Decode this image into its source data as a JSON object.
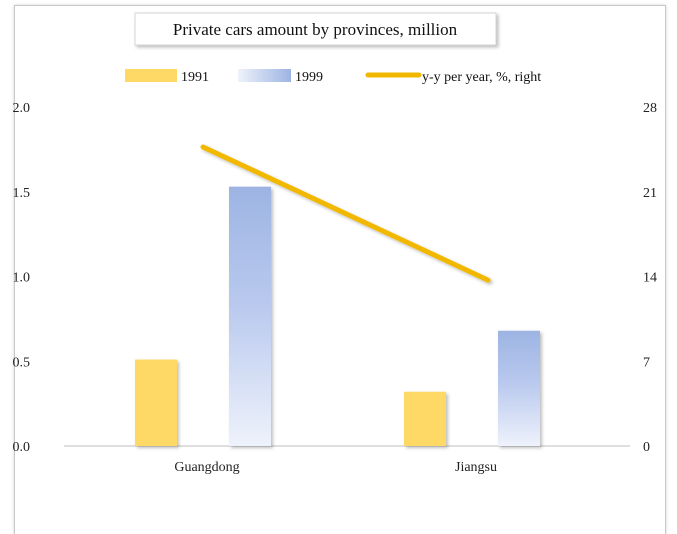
{
  "chart_data": {
    "type": "bar",
    "title": "Private cars amount by provinces, million",
    "categories": [
      "Guangdong",
      "Jiangsu"
    ],
    "series": [
      {
        "name": "1991",
        "type": "bar",
        "axis": "left",
        "values": [
          0.51,
          0.32
        ],
        "color": "#ffd966"
      },
      {
        "name": "1999",
        "type": "bar",
        "axis": "left",
        "values": [
          1.53,
          0.68
        ],
        "color": "#8eaadb"
      },
      {
        "name": "y-y per year, %, right",
        "type": "line",
        "axis": "right",
        "values": [
          24.7,
          13.7
        ],
        "color": "#f2b800"
      }
    ],
    "y_left": {
      "ylim": [
        0,
        2.0
      ],
      "ticks": [
        "0.0",
        "0.5",
        "1.0",
        "1.5",
        "2.0"
      ]
    },
    "y_right": {
      "ylim": [
        0,
        28
      ],
      "ticks": [
        "0",
        "7",
        "14",
        "21",
        "28"
      ]
    },
    "legend_placement": "top",
    "grid": false
  }
}
